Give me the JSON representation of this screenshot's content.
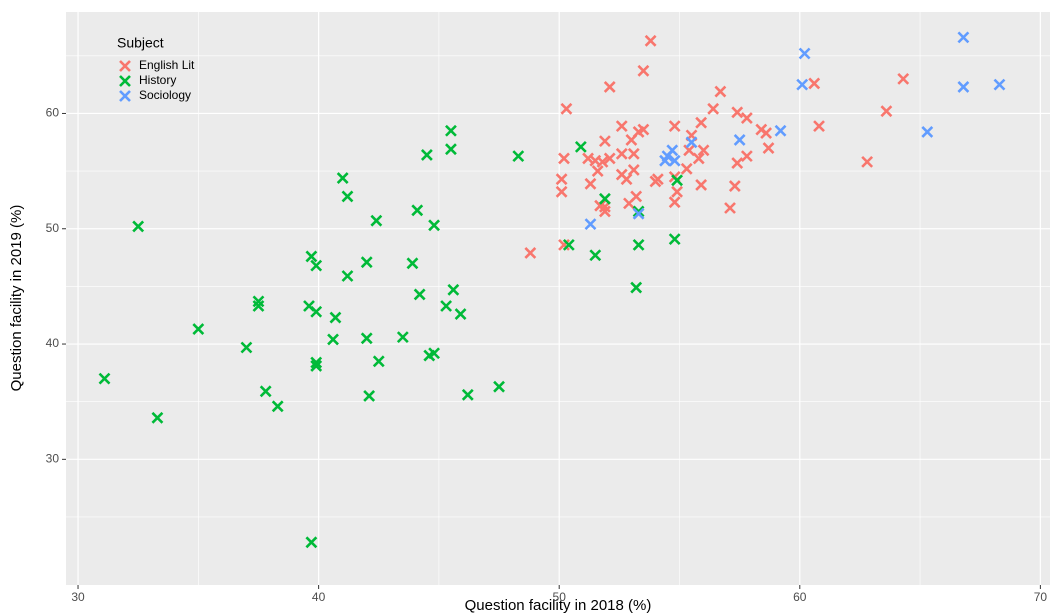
{
  "chart_data": {
    "type": "scatter",
    "xlabel": "Question facility in 2018 (%)",
    "ylabel": "Question facility in 2019 (%)",
    "legend_title": "Subject",
    "legend": "top-left",
    "grid": true,
    "xlim": [
      29.5,
      70.4
    ],
    "xticks": [
      30,
      40,
      50,
      60,
      70
    ],
    "ylim": [
      19.1,
      68.8
    ],
    "yticks": [
      30,
      40,
      50,
      60
    ],
    "series": [
      {
        "name": "English Lit",
        "color": "#F8766D",
        "x": [
          53.8,
          53.5,
          52.1,
          50.3,
          56.7,
          60.6,
          64.3,
          63.6,
          62.8,
          60.8,
          57.4,
          56.4,
          55.9,
          54.8,
          55.5,
          57.8,
          58.4,
          58.6,
          58.7,
          57.8,
          57.4,
          57.3,
          57.1,
          56.0,
          55.8,
          55.9,
          55.3,
          55.4,
          54.8,
          54.9,
          54.8,
          53.5,
          53.3,
          52.6,
          53.0,
          52.6,
          51.9,
          51.5,
          51.8,
          51.2,
          52.1,
          52.6,
          52.8,
          53.1,
          53.1,
          53.2,
          52.9,
          54.0,
          54.1,
          50.2,
          50.1,
          50.1,
          51.3,
          51.6,
          51.9,
          51.9,
          50.2,
          48.8,
          51.7
        ],
        "values": [
          66.3,
          63.7,
          62.3,
          60.4,
          61.9,
          62.6,
          63.0,
          60.2,
          55.8,
          58.9,
          60.1,
          60.4,
          59.2,
          58.9,
          58.1,
          59.6,
          58.6,
          58.3,
          57.0,
          56.3,
          55.7,
          53.7,
          51.8,
          56.8,
          56.1,
          53.8,
          55.2,
          56.8,
          52.3,
          53.2,
          54.5,
          58.6,
          58.4,
          58.9,
          57.7,
          56.5,
          57.6,
          55.9,
          55.8,
          56.1,
          56.1,
          54.7,
          54.3,
          55.1,
          56.5,
          52.8,
          52.2,
          54.1,
          54.3,
          56.1,
          54.3,
          53.2,
          53.9,
          55.0,
          51.9,
          51.5,
          48.6,
          47.9,
          52.0
        ]
      },
      {
        "name": "History",
        "color": "#00BA38",
        "x": [
          32.5,
          31.1,
          33.3,
          35.0,
          37.0,
          37.5,
          37.5,
          37.8,
          38.3,
          39.7,
          39.9,
          39.6,
          39.9,
          39.9,
          39.9,
          39.7,
          40.7,
          40.6,
          41.0,
          41.2,
          41.2,
          42.0,
          42.0,
          42.1,
          42.4,
          42.5,
          43.5,
          43.9,
          44.1,
          44.2,
          44.5,
          44.6,
          44.8,
          44.8,
          45.5,
          45.5,
          45.6,
          45.3,
          45.9,
          46.2,
          47.5,
          48.3,
          50.4,
          50.9,
          51.9,
          51.5,
          53.3,
          53.3,
          53.2,
          54.8,
          54.9
        ],
        "values": [
          50.2,
          37.0,
          33.6,
          41.3,
          39.7,
          43.7,
          43.3,
          35.9,
          34.6,
          47.6,
          46.8,
          43.3,
          42.8,
          38.4,
          38.1,
          22.8,
          42.3,
          40.4,
          54.4,
          52.8,
          45.9,
          47.1,
          40.5,
          35.5,
          50.7,
          38.5,
          40.6,
          47.0,
          51.6,
          44.3,
          56.4,
          39.0,
          39.2,
          50.3,
          58.5,
          56.9,
          44.7,
          43.3,
          42.6,
          35.6,
          36.3,
          56.3,
          48.6,
          57.1,
          52.6,
          47.7,
          51.5,
          48.6,
          44.9,
          49.1,
          54.2
        ]
      },
      {
        "name": "Sociology",
        "color": "#619CFF",
        "x": [
          60.2,
          60.1,
          66.8,
          66.8,
          68.3,
          65.3,
          59.2,
          57.5,
          55.5,
          54.7,
          54.5,
          54.8,
          54.4,
          51.3,
          53.3
        ],
        "values": [
          65.2,
          62.5,
          66.6,
          62.3,
          62.5,
          58.4,
          58.5,
          57.7,
          57.5,
          56.8,
          56.3,
          55.9,
          55.9,
          50.4,
          51.3
        ]
      }
    ]
  }
}
